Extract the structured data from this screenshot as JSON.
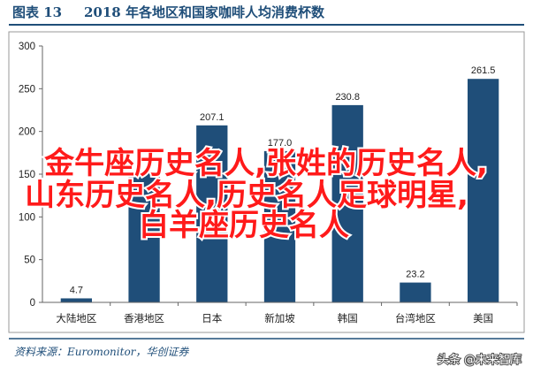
{
  "header": {
    "fig_label": "图表 13",
    "title": "2018 年各地区和国家咖啡人均消费杯数"
  },
  "source": {
    "text": "资料来源：Euromonitor，华创证券"
  },
  "overlay": {
    "lines": [
      "金牛座历史名人,张姓的历史名人,",
      "山东历史名人,历史名人足球明星,",
      "白羊座历史名人"
    ]
  },
  "watermark": {
    "text": "头条 @未来智库"
  },
  "colors": {
    "bar": "#1f4e79",
    "title_accent": "#1f4e79",
    "frame": "#7f7f7f",
    "grid": "#d9d9d9",
    "overlay": "#ff1a1a"
  },
  "chart_data": {
    "type": "bar",
    "title": "2018 年各地区和国家咖啡人均消费杯数",
    "categories": [
      "大陆地区",
      "香港地区",
      "日本",
      "新加坡",
      "韩国",
      "台湾地区",
      "美国"
    ],
    "values": [
      4.7,
      153,
      207.1,
      177.0,
      230.8,
      23.2,
      261.5
    ],
    "data_labels": [
      "4.7",
      "",
      "207.1",
      "177.0",
      "230.8",
      "23.2",
      "261.5"
    ],
    "xlabel": "",
    "ylabel": "",
    "ylim": [
      0,
      300
    ],
    "yticks": [
      0,
      50,
      100,
      150,
      200,
      250,
      300
    ],
    "ytick_labels": [
      "0",
      "50",
      "100",
      "150",
      "200",
      "250",
      "300"
    ],
    "grid": false,
    "legend": "none"
  }
}
